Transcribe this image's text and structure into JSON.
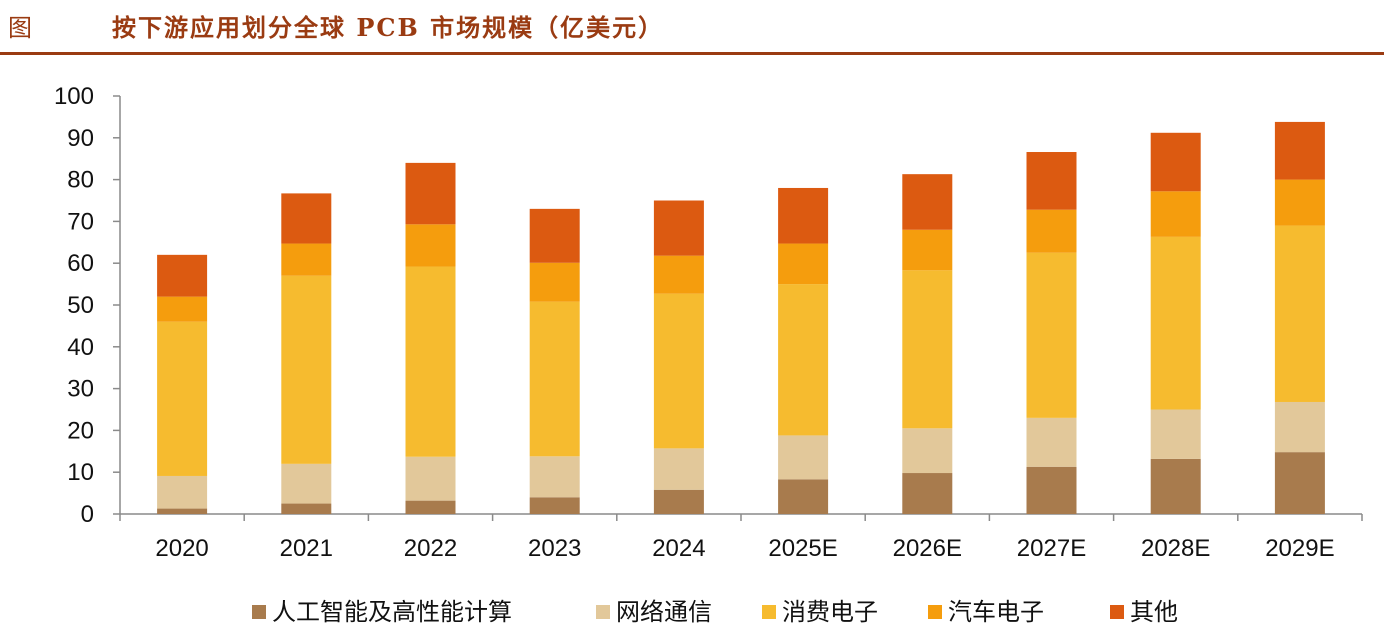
{
  "header": {
    "figure_label": "图",
    "title": "按下游应用划分全球 PCB 市场规模（亿美元）"
  },
  "chart_data": {
    "type": "bar",
    "stacked": true,
    "title": "按下游应用划分全球 PCB 市场规模（亿美元）",
    "categories": [
      "2020",
      "2021",
      "2022",
      "2023",
      "2024",
      "2025E",
      "2026E",
      "2027E",
      "2028E",
      "2029E"
    ],
    "ylim": [
      0,
      100
    ],
    "yticks": [
      0,
      10,
      20,
      30,
      40,
      50,
      60,
      70,
      80,
      90,
      100
    ],
    "grid": false,
    "legend_position": "bottom",
    "series": [
      {
        "name": "人工智能及高性能计算",
        "color": "#a87b4d",
        "values": [
          1.3,
          2.5,
          3.2,
          4.0,
          5.8,
          8.3,
          9.8,
          11.3,
          13.2,
          14.8
        ]
      },
      {
        "name": "网络通信",
        "color": "#e2c89a",
        "values": [
          7.8,
          9.5,
          10.5,
          9.8,
          9.9,
          10.5,
          10.7,
          11.7,
          11.8,
          12.0
        ]
      },
      {
        "name": "消费电子",
        "color": "#f6bb2f",
        "values": [
          36.9,
          45.0,
          45.5,
          37.0,
          37.0,
          36.2,
          37.8,
          39.5,
          41.3,
          42.2
        ]
      },
      {
        "name": "汽车电子",
        "color": "#f59d0d",
        "values": [
          6.0,
          7.7,
          10.1,
          9.3,
          9.1,
          9.7,
          9.7,
          10.3,
          10.9,
          11.0
        ]
      },
      {
        "name": "其他",
        "color": "#dc5a11",
        "values": [
          10.0,
          12.0,
          14.7,
          12.9,
          13.2,
          13.3,
          13.3,
          13.8,
          14.0,
          13.8
        ]
      }
    ]
  }
}
